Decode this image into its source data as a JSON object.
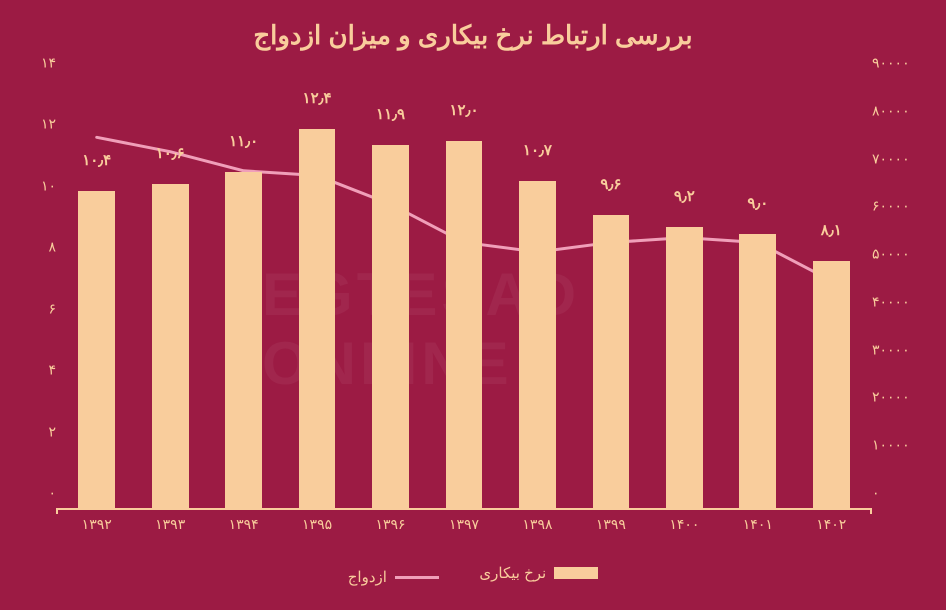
{
  "chart": {
    "type": "bar+line",
    "title": "بررسی ارتباط نرخ بیکاری و میزان ازدواج",
    "background_color": "#9c1b44",
    "foreground_color": "#f9cd9c",
    "line_color": "#f09fb9",
    "bar_color": "#f9cd9c",
    "bar_width_ratio": 0.5,
    "line_width": 3,
    "title_fontsize": 26,
    "tick_fontsize": 14,
    "label_fontsize": 15,
    "categories": [
      "۱۳۹۲",
      "۱۳۹۳",
      "۱۳۹۴",
      "۱۳۹۵",
      "۱۳۹۶",
      "۱۳۹۷",
      "۱۳۹۸",
      "۱۳۹۹",
      "۱۴۰۰",
      "۱۴۰۱",
      "۱۴۰۲"
    ],
    "bar_series": {
      "name": "نرخ بیکاری",
      "values": [
        10.4,
        10.6,
        11.0,
        12.4,
        11.9,
        12.0,
        10.7,
        9.6,
        9.2,
        9.0,
        8.1
      ],
      "value_labels": [
        "۱۰٫۴",
        "۱۰٫۶",
        "۱۱٫۰",
        "۱۲٫۴",
        "۱۱٫۹",
        "۱۲٫۰",
        "۱۰٫۷",
        "۹٫۶",
        "۹٫۲",
        "۹٫۰",
        "۸٫۱"
      ]
    },
    "line_series": {
      "name": "ازدواج",
      "values": [
        78000,
        75000,
        71000,
        70000,
        64000,
        56000,
        54000,
        56000,
        57000,
        56000,
        48000
      ]
    },
    "y_left": {
      "min": 0,
      "max": 14,
      "step": 2,
      "tick_labels": [
        "۰",
        "۲",
        "۴",
        "۶",
        "۸",
        "۱۰",
        "۱۲",
        "۱۴"
      ]
    },
    "y_right": {
      "min": 0,
      "max": 90000,
      "step": 10000,
      "tick_labels": [
        "۰",
        "۱۰۰۰۰",
        "۲۰۰۰۰",
        "۳۰۰۰۰",
        "۴۰۰۰۰",
        "۵۰۰۰۰",
        "۶۰۰۰۰",
        "۷۰۰۰۰",
        "۸۰۰۰۰",
        "۹۰۰۰۰"
      ]
    },
    "legend": {
      "bar_label": "نرخ بیکاری",
      "line_label": "ازدواج"
    },
    "watermark": "EGTESAD ONLINE"
  }
}
